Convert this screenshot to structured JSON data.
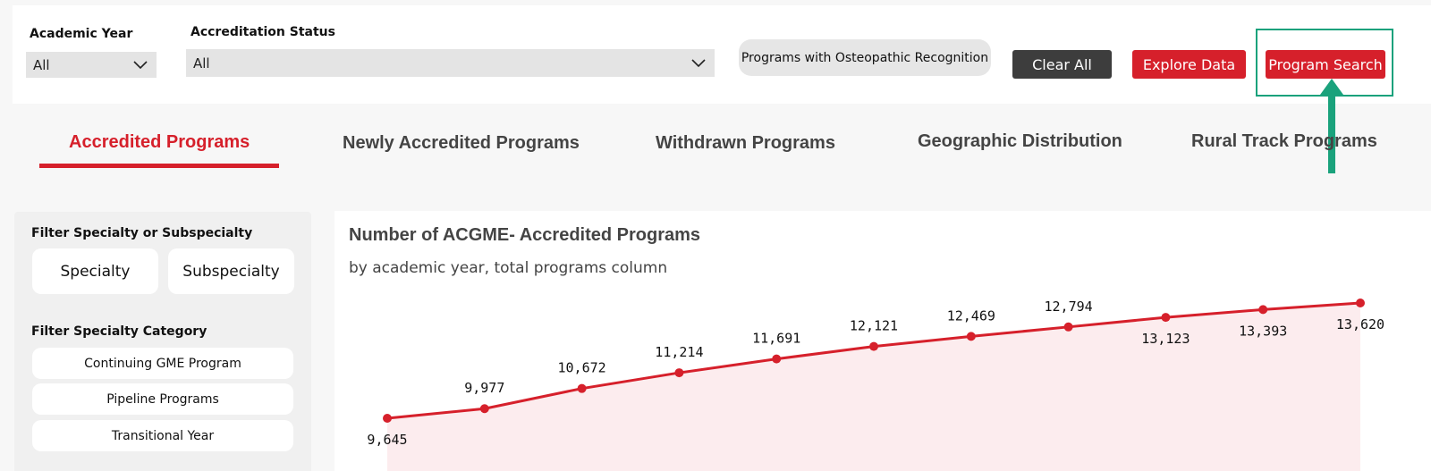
{
  "filters": {
    "academic_year": {
      "label": "Academic Year",
      "value": "All"
    },
    "accreditation_status": {
      "label": "Accreditation Status",
      "value": "All"
    },
    "osteopathic_button": "Programs with Osteopathic Recognition",
    "clear_all": "Clear All",
    "explore_data": "Explore Data",
    "program_search": "Program Search"
  },
  "tabs": [
    {
      "label": "Accredited Programs",
      "active": true
    },
    {
      "label": "Newly Accredited Programs",
      "active": false
    },
    {
      "label": "Withdrawn Programs",
      "active": false
    },
    {
      "label": "Geographic Distribution",
      "active": false
    },
    {
      "label": "Rural Track Programs",
      "active": false
    }
  ],
  "left_panel": {
    "specialty_filter_title": "Filter Specialty or Subspecialty",
    "specialty_button": "Specialty",
    "subspecialty_button": "Subspecialty",
    "category_filter_title": "Filter Specialty Category",
    "categories": [
      "Continuing GME Program",
      "Pipeline Programs",
      "Transitional Year"
    ]
  },
  "colors": {
    "accent": "#d6202b",
    "highlight": "#1aa27c",
    "dark_button": "#3d3d3d"
  },
  "chart_data": {
    "type": "area",
    "title": "Number of ACGME- Accredited Programs",
    "subtitle": "by academic year, total programs column",
    "values": [
      9645,
      9977,
      10672,
      11214,
      11691,
      12121,
      12469,
      12794,
      13123,
      13393,
      13620
    ],
    "labels": [
      "9,645",
      "9,977",
      "10,672",
      "11,214",
      "11,691",
      "12,121",
      "12,469",
      "12,794",
      "13,123",
      "13,393",
      "13,620"
    ],
    "label_positions": [
      "below",
      "above",
      "above",
      "above",
      "above",
      "above",
      "above",
      "above",
      "below",
      "below",
      "below"
    ]
  }
}
